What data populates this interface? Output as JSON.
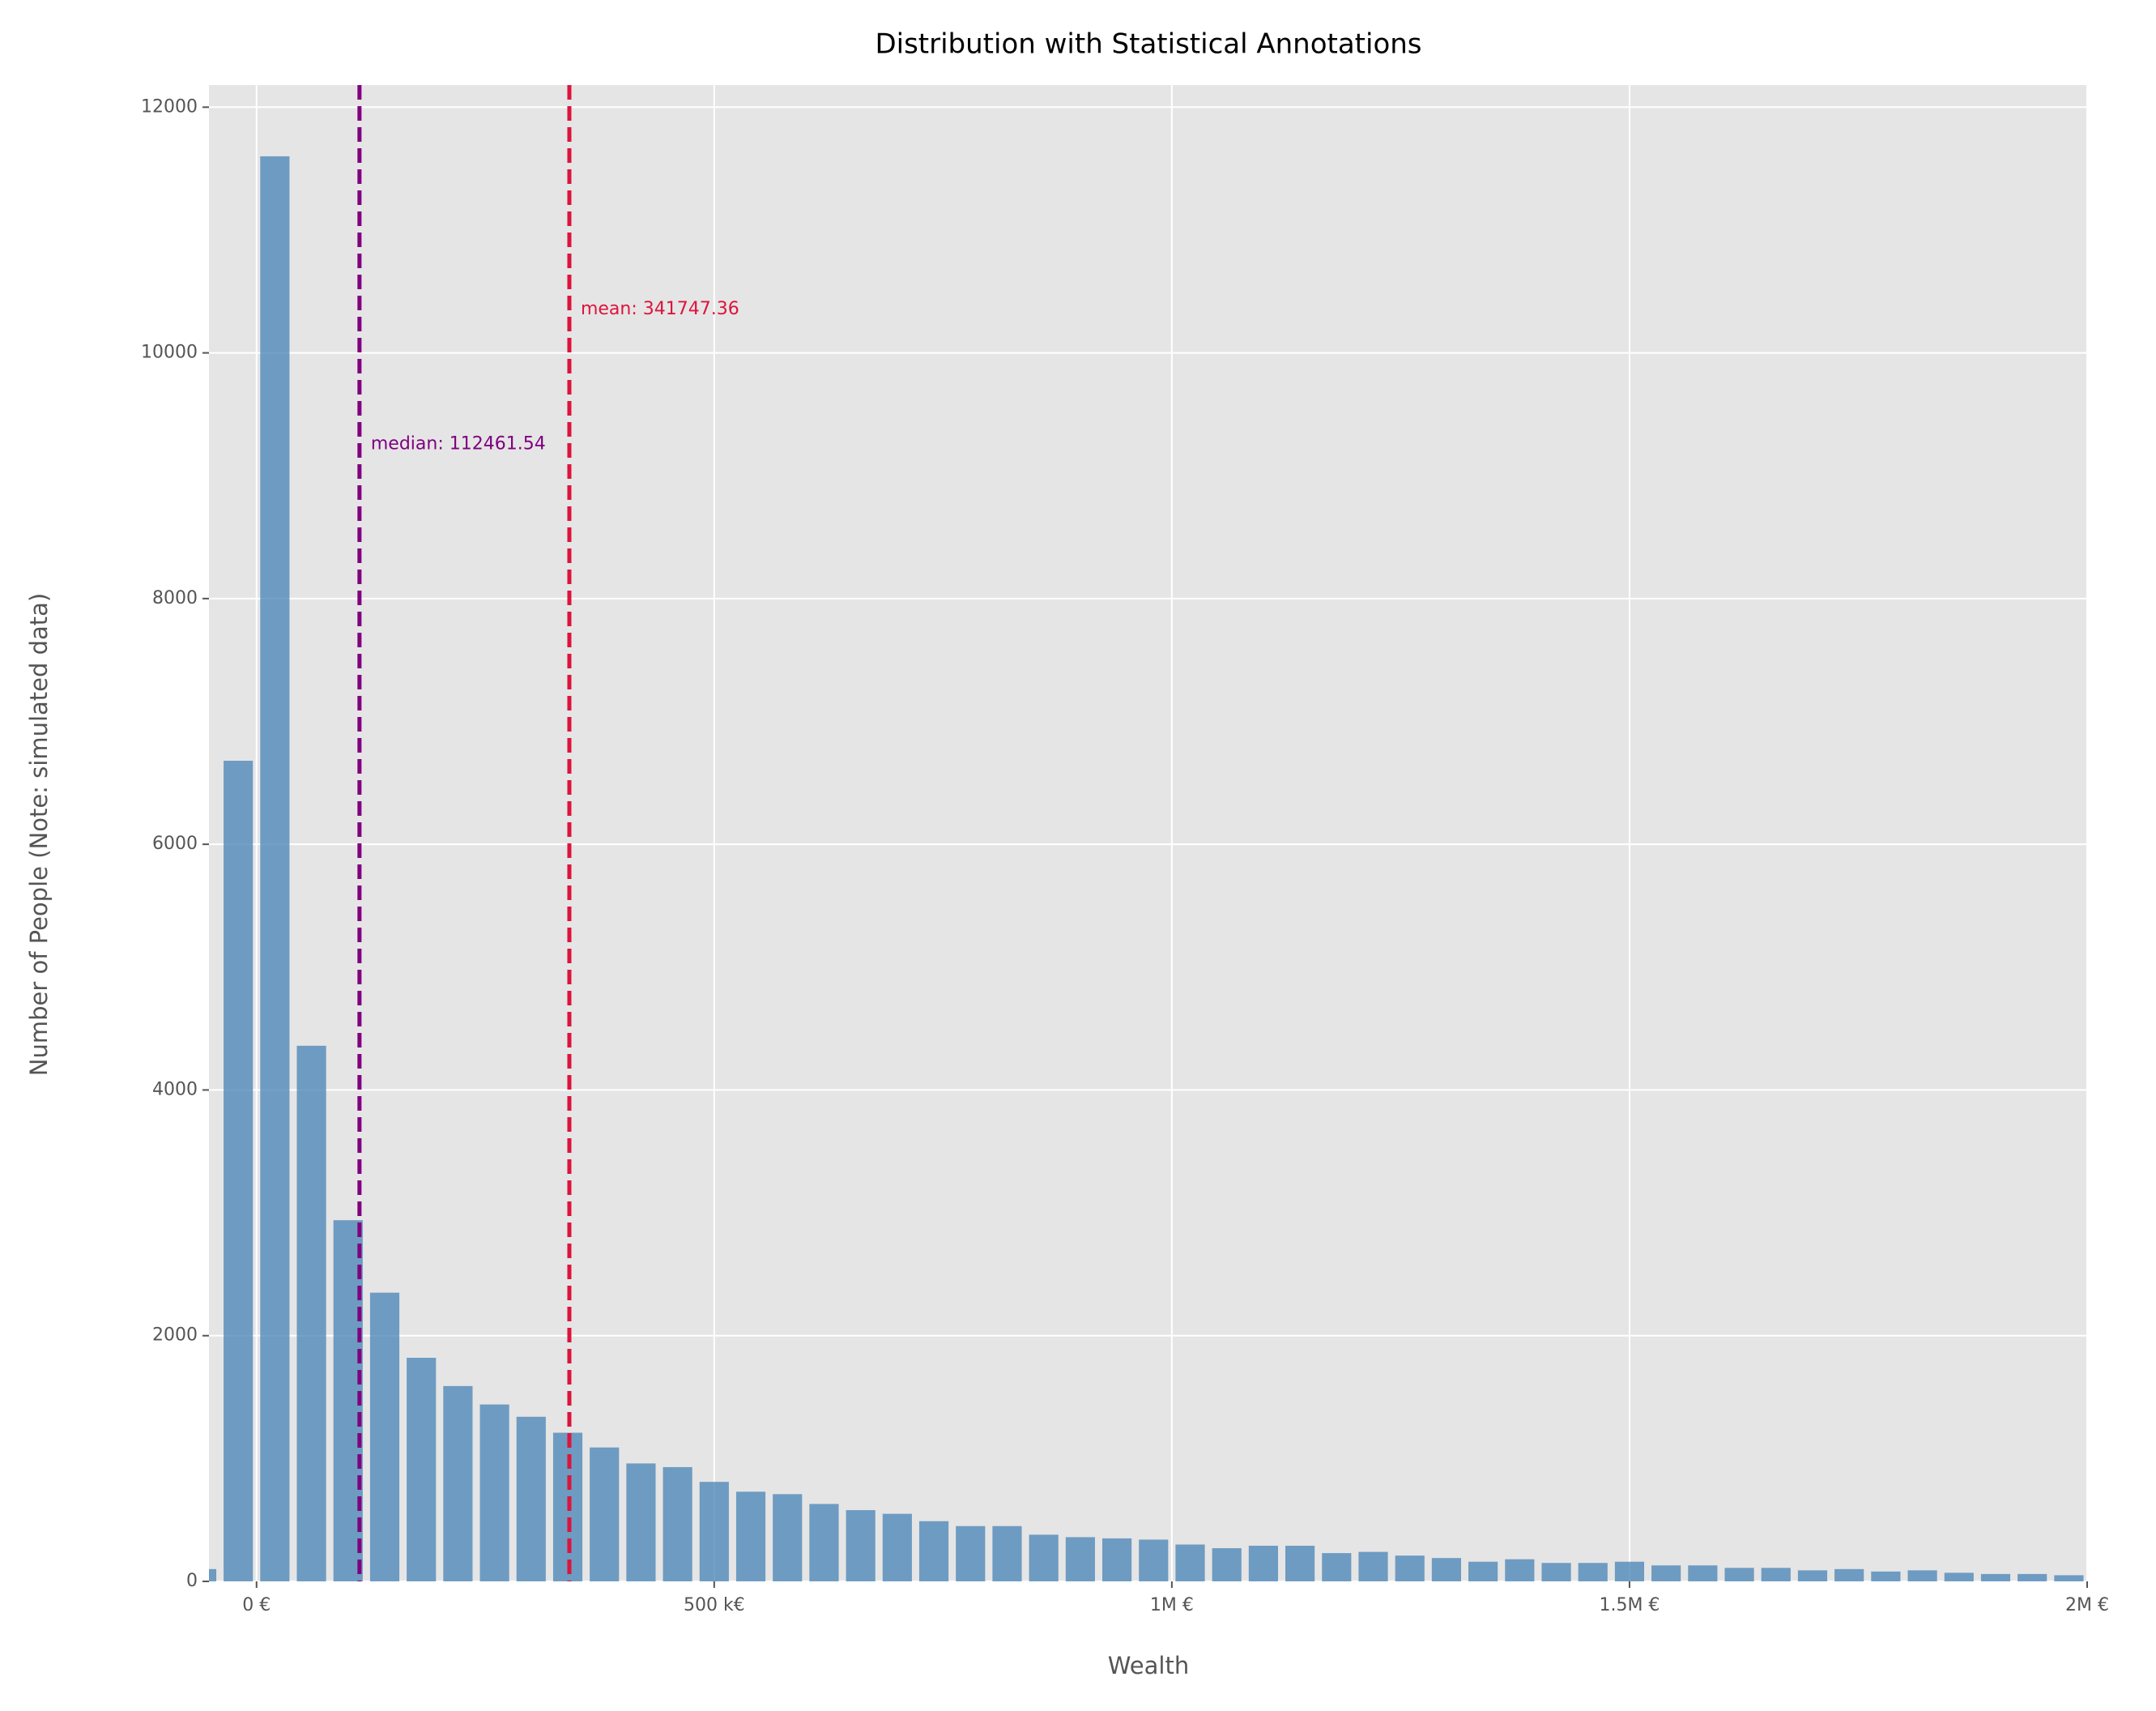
{
  "chart_data": {
    "type": "histogram",
    "title": "Distribution with Statistical Annotations",
    "x_label": "Wealth",
    "y_label": "Number of People (Note: simulated data)",
    "bins": [
      -80000,
      -40000,
      0,
      40000,
      80000,
      120000,
      160000,
      200000,
      240000,
      280000,
      320000,
      360000,
      400000,
      440000,
      480000,
      520000,
      560000,
      600000,
      640000,
      680000,
      720000,
      760000,
      800000,
      840000,
      880000,
      920000,
      960000,
      1000000,
      1040000,
      1080000,
      1120000,
      1160000,
      1200000,
      1240000,
      1280000,
      1320000,
      1360000,
      1400000,
      1440000,
      1480000,
      1520000,
      1560000,
      1600000,
      1640000,
      1680000,
      1720000,
      1760000,
      1800000,
      1840000,
      1880000,
      1920000,
      1960000,
      2000000
    ],
    "values": [
      100,
      6680,
      11600,
      4360,
      2940,
      2350,
      1820,
      1590,
      1440,
      1340,
      1210,
      1090,
      960,
      930,
      810,
      730,
      710,
      630,
      580,
      550,
      490,
      450,
      450,
      380,
      360,
      350,
      340,
      300,
      270,
      290,
      290,
      230,
      240,
      210,
      190,
      160,
      180,
      150,
      150,
      160,
      130,
      130,
      110,
      110,
      90,
      100,
      80,
      90,
      70,
      60,
      60,
      50
    ],
    "color": "#4682b4",
    "xlim": [
      -52000,
      2000000
    ],
    "xticks": [
      {
        "value": 0,
        "label": "0 €"
      },
      {
        "value": 500000,
        "label": "500 k€"
      },
      {
        "value": 1000000,
        "label": "1M €"
      },
      {
        "value": 1500000,
        "label": "1.5M €"
      },
      {
        "value": 2000000,
        "label": "2M €"
      }
    ],
    "ylim": [
      0,
      12180
    ],
    "yticks": [
      0,
      2000,
      4000,
      6000,
      8000,
      10000,
      12000
    ],
    "grid": true,
    "annotations": [
      {
        "label": "median: 112461.54",
        "value": 112461.54,
        "color": "#800080"
      },
      {
        "label": "mean: 341747.36",
        "value": 341747.36,
        "color": "#dc143c"
      }
    ]
  }
}
